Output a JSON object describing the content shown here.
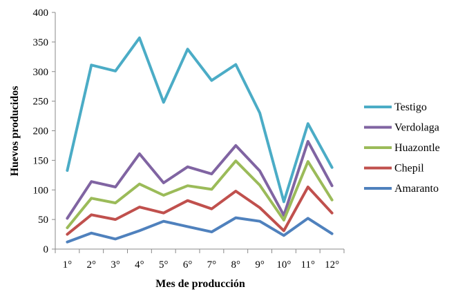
{
  "chart_data": {
    "type": "line",
    "xlabel": "Mes de producción",
    "ylabel": "Huevos producidos",
    "categories": [
      "1°",
      "2°",
      "3°",
      "4°",
      "5°",
      "6°",
      "7°",
      "8°",
      "9°",
      "10°",
      "11°",
      "12°"
    ],
    "ylim": [
      0,
      400
    ],
    "yticks": [
      "0",
      "50",
      "100",
      "150",
      "200",
      "250",
      "300",
      "350",
      "400"
    ],
    "grid": false,
    "legend_position": "right",
    "series": [
      {
        "name": "Testigo",
        "color": "#4bacc6",
        "values": [
          133,
          311,
          301,
          357,
          248,
          338,
          285,
          312,
          230,
          80,
          212,
          138
        ]
      },
      {
        "name": "Verdolaga",
        "color": "#8064a2",
        "values": [
          52,
          114,
          105,
          161,
          112,
          139,
          127,
          175,
          132,
          57,
          182,
          107
        ]
      },
      {
        "name": "Huazontle",
        "color": "#9bbb59",
        "values": [
          36,
          86,
          78,
          110,
          91,
          107,
          101,
          149,
          108,
          49,
          148,
          83
        ]
      },
      {
        "name": "Chepil",
        "color": "#c0504d",
        "values": [
          25,
          58,
          50,
          71,
          61,
          82,
          68,
          98,
          70,
          31,
          105,
          61
        ]
      },
      {
        "name": "Amaranto",
        "color": "#4f81bd",
        "values": [
          12,
          27,
          17,
          31,
          47,
          38,
          29,
          53,
          47,
          23,
          52,
          26
        ]
      }
    ]
  }
}
